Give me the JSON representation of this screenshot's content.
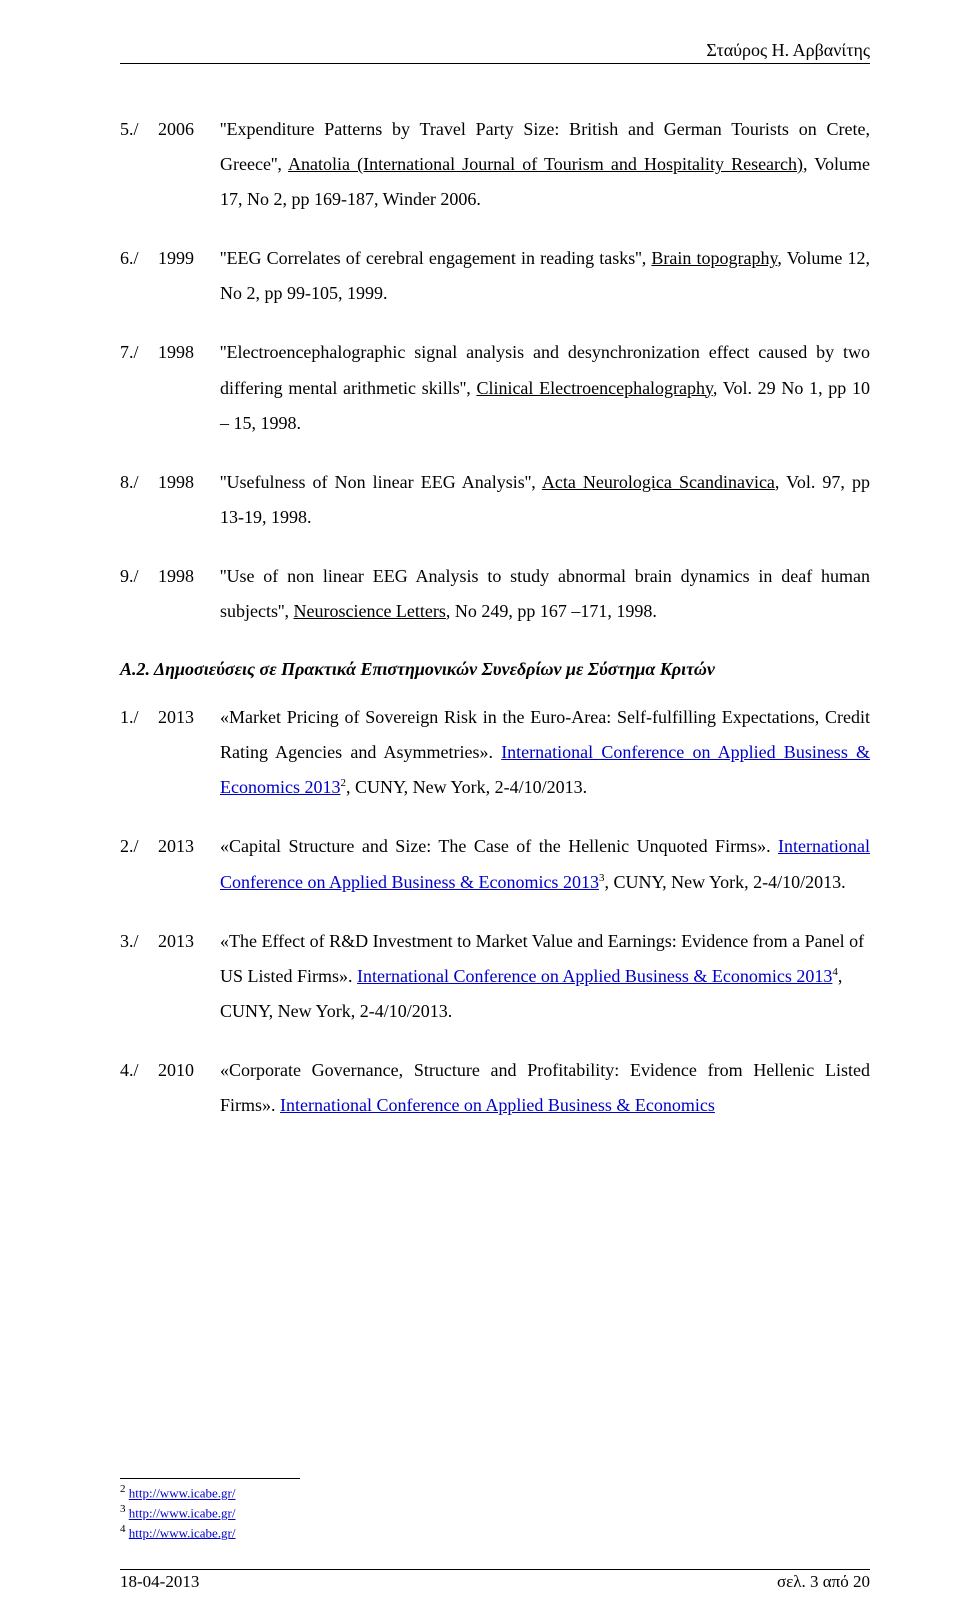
{
  "header": {
    "author_name": "Σταύρος Η. Αρβανίτης"
  },
  "entries_a": [
    {
      "num": "5./",
      "year": "2006",
      "prefix": "''Expenditure Patterns by Travel Party Size: British and German Tourists on Crete, Greece'', ",
      "u1": "Anatolia (International Journal of Tourism and Hospitality Research)",
      "after_u1": ", Volume 17, No 2, pp 169-187, Winder 2006."
    },
    {
      "num": "6./",
      "year": "1999",
      "prefix": "''EEG Correlates of cerebral engagement in reading tasks'', ",
      "u1": "Brain topography",
      "after_u1": ", Volume 12, No 2, pp 99-105, 1999."
    },
    {
      "num": "7./",
      "year": "1998",
      "prefix": "''Electroencephalographic signal analysis and desynchronization effect caused by two differing mental arithmetic skills'', ",
      "u1": "Clinical Electroencephalography",
      "after_u1": ", Vol. 29 No 1, pp 10 – 15, 1998."
    },
    {
      "num": "8./",
      "year": "1998",
      "prefix": "''Usefulness of Non linear EEG Analysis'', ",
      "u1": "Acta Neurologica Scandinavica",
      "after_u1": ", Vol. 97, pp 13-19, 1998."
    },
    {
      "num": "9./",
      "year": "1998",
      "prefix": "''Use of non linear EEG Analysis to study abnormal brain dynamics in deaf human subjects'', ",
      "u1": "Neuroscience Letters",
      "after_u1": ", No 249, pp 167 –171, 1998."
    }
  ],
  "section_heading": "Α.2. Δημοσιεύσεις σε Πρακτικά Επιστημονικών Συνεδρίων με Σύστημα Κριτών",
  "entries_b": [
    {
      "num": "1./",
      "year": "2013",
      "prefix": "«Market Pricing of Sovereign Risk in the Euro-Area: Self-fulfilling Expectations, Credit Rating Agencies and Asymmetries». ",
      "link": "International Conference on Applied Business & Economics 2013",
      "sup": "2",
      "after": ", CUNY, New York, 2-4/10/2013."
    },
    {
      "num": "2./",
      "year": "2013",
      "prefix": "«Capital Structure and Size: The Case of the Hellenic Unquoted Firms». ",
      "link": "International Conference on Applied Business & Economics 2013",
      "sup": "3",
      "after": ", CUNY, New York, 2-4/10/2013."
    },
    {
      "num": "3./",
      "year": "2013",
      "prefix": "«The Effect of R&D Investment to Market Value and Earnings: Evidence from a Panel of US Listed Firms». ",
      "link": "International Conference on Applied Business & Economics 2013",
      "sup": "4",
      "after": ", CUNY, New York, 2-4/10/2013."
    },
    {
      "num": "4./",
      "year": "2010",
      "prefix": "«Corporate Governance, Structure and Profitability: Evidence from Hellenic Listed Firms». ",
      "link": "International Conference on Applied Business & Economics",
      "sup": "",
      "after": ""
    }
  ],
  "footnotes": [
    {
      "num": "2",
      "link": "http://www.icabe.gr/"
    },
    {
      "num": "3",
      "link": "http://www.icabe.gr/"
    },
    {
      "num": "4",
      "link": "http://www.icabe.gr/"
    }
  ],
  "footer": {
    "date": "18-04-2013",
    "page": "σελ. 3 από 20"
  }
}
